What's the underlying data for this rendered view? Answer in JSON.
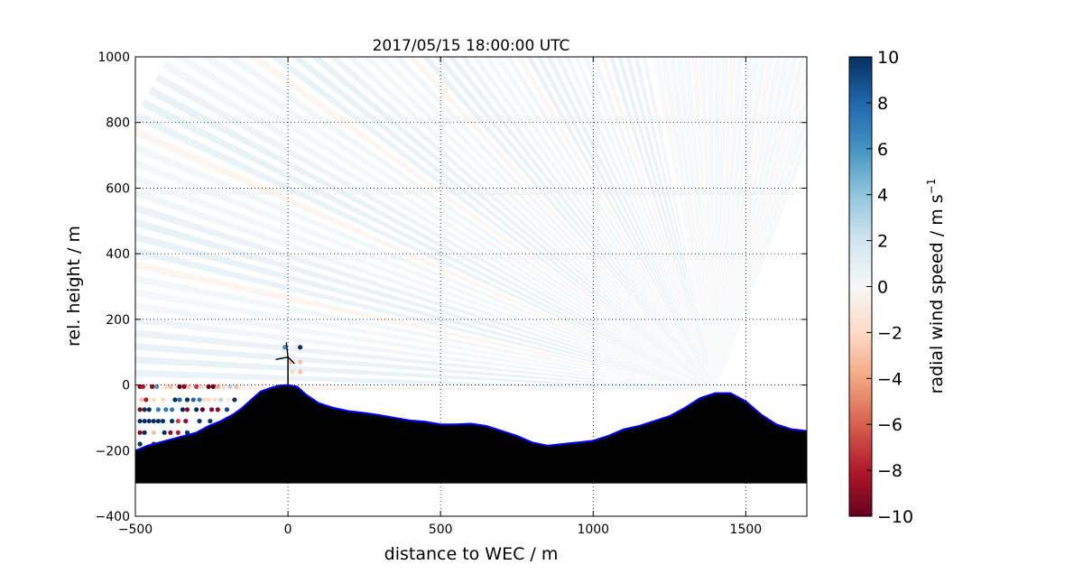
{
  "chart_data": {
    "type": "scatter",
    "title": "2017/05/15 18:00:00 UTC",
    "xlabel": "distance to WEC / m",
    "ylabel": "rel. height / m",
    "xlim": [
      -500,
      1700
    ],
    "ylim": [
      -400,
      1000
    ],
    "xticks": [
      -500,
      0,
      500,
      1000,
      1500
    ],
    "yticks": [
      -400,
      -200,
      0,
      200,
      400,
      600,
      800,
      1000
    ],
    "xtick_labels": [
      "−500",
      "0",
      "500",
      "1000",
      "1500"
    ],
    "ytick_labels": [
      "−400",
      "−200",
      "0",
      "200",
      "400",
      "600",
      "800",
      "1000"
    ],
    "grid": true,
    "scan": {
      "origin": [
        1400,
        -20
      ],
      "extent": "roughly −480 to 1620 m in distance, up to 1000 m in height",
      "dominant_radial_wind_speed": [
        0,
        2
      ]
    },
    "terrain": {
      "x": [
        -500,
        -460,
        -420,
        -380,
        -340,
        -300,
        -260,
        -220,
        -180,
        -150,
        -120,
        -90,
        -60,
        -30,
        0,
        30,
        60,
        100,
        150,
        200,
        250,
        300,
        350,
        400,
        450,
        500,
        550,
        600,
        650,
        700,
        750,
        800,
        850,
        900,
        950,
        1000,
        1050,
        1100,
        1150,
        1200,
        1250,
        1300,
        1350,
        1400,
        1450,
        1500,
        1550,
        1600,
        1650,
        1700
      ],
      "y": [
        -200,
        -185,
        -175,
        -165,
        -155,
        -145,
        -125,
        -110,
        -90,
        -70,
        -45,
        -20,
        -10,
        -2,
        0,
        -5,
        -30,
        -55,
        -70,
        -80,
        -85,
        -92,
        -100,
        -108,
        -112,
        -120,
        -120,
        -118,
        -125,
        -140,
        -155,
        -175,
        -185,
        -180,
        -175,
        -170,
        -155,
        -135,
        -125,
        -110,
        -95,
        -70,
        -40,
        -25,
        -25,
        -50,
        -90,
        -120,
        -135,
        -140
      ],
      "base": -300,
      "fill_color": "#000000",
      "edge_color": "#0000ff"
    },
    "wec": {
      "x": 0,
      "hub_height": 85
    },
    "colorbar": {
      "label": "radial wind speed / m s",
      "label_superscript": "−1",
      "min": -10,
      "max": 10,
      "colormap": "RdBu",
      "ticks": [
        -10,
        -8,
        -6,
        -4,
        -2,
        0,
        2,
        4,
        6,
        8,
        10
      ],
      "tick_labels": [
        "−10",
        "−8",
        "−6",
        "−4",
        "−2",
        "0",
        "2",
        "4",
        "6",
        "8",
        "10"
      ],
      "colors": [
        "#67001f",
        "#b2182b",
        "#d6604d",
        "#f4a582",
        "#fddbc7",
        "#f7f7f7",
        "#d1e5f0",
        "#92c5de",
        "#4393c3",
        "#2166ac",
        "#053061"
      ]
    },
    "near_ground_points": [
      {
        "x": -485,
        "y": -5,
        "v": -9
      },
      {
        "x": -475,
        "y": -5,
        "v": -8
      },
      {
        "x": -445,
        "y": -5,
        "v": -9
      },
      {
        "x": -430,
        "y": -5,
        "v": 6
      },
      {
        "x": -400,
        "y": -5,
        "v": -2
      },
      {
        "x": -385,
        "y": -5,
        "v": -3
      },
      {
        "x": -355,
        "y": -5,
        "v": -10
      },
      {
        "x": -340,
        "y": -5,
        "v": -9
      },
      {
        "x": -325,
        "y": -5,
        "v": -3
      },
      {
        "x": -300,
        "y": -5,
        "v": -7
      },
      {
        "x": -285,
        "y": -5,
        "v": -2
      },
      {
        "x": -260,
        "y": -5,
        "v": -10
      },
      {
        "x": -245,
        "y": -5,
        "v": -10
      },
      {
        "x": -230,
        "y": -5,
        "v": -4
      },
      {
        "x": -210,
        "y": -5,
        "v": -2
      },
      {
        "x": -190,
        "y": -5,
        "v": 3
      },
      {
        "x": -170,
        "y": -5,
        "v": -3
      },
      {
        "x": -480,
        "y": -45,
        "v": -3
      },
      {
        "x": -465,
        "y": -45,
        "v": -8
      },
      {
        "x": -440,
        "y": -45,
        "v": -2
      },
      {
        "x": -410,
        "y": -45,
        "v": -2
      },
      {
        "x": -370,
        "y": -45,
        "v": 10
      },
      {
        "x": -355,
        "y": -45,
        "v": 8
      },
      {
        "x": -330,
        "y": -45,
        "v": 10
      },
      {
        "x": -310,
        "y": -45,
        "v": 8
      },
      {
        "x": -290,
        "y": -45,
        "v": 7
      },
      {
        "x": -275,
        "y": -45,
        "v": -2
      },
      {
        "x": -260,
        "y": -45,
        "v": -2
      },
      {
        "x": -240,
        "y": -45,
        "v": -2
      },
      {
        "x": -220,
        "y": -45,
        "v": 3
      },
      {
        "x": -195,
        "y": -45,
        "v": -1
      },
      {
        "x": -175,
        "y": -45,
        "v": 10
      },
      {
        "x": -485,
        "y": -75,
        "v": -9
      },
      {
        "x": -470,
        "y": -75,
        "v": 10
      },
      {
        "x": -455,
        "y": -75,
        "v": 10
      },
      {
        "x": -425,
        "y": -75,
        "v": 7
      },
      {
        "x": -400,
        "y": -75,
        "v": 7
      },
      {
        "x": -380,
        "y": -75,
        "v": 7
      },
      {
        "x": -345,
        "y": -75,
        "v": 10
      },
      {
        "x": -330,
        "y": -75,
        "v": -9
      },
      {
        "x": -300,
        "y": -75,
        "v": 10
      },
      {
        "x": -280,
        "y": -75,
        "v": -10
      },
      {
        "x": -250,
        "y": -75,
        "v": -9
      },
      {
        "x": -230,
        "y": -75,
        "v": -9
      },
      {
        "x": -200,
        "y": -75,
        "v": 9
      },
      {
        "x": -485,
        "y": -110,
        "v": 10
      },
      {
        "x": -470,
        "y": -110,
        "v": 10
      },
      {
        "x": -455,
        "y": -110,
        "v": 10
      },
      {
        "x": -440,
        "y": -110,
        "v": 10
      },
      {
        "x": -425,
        "y": -110,
        "v": 10
      },
      {
        "x": -410,
        "y": -110,
        "v": 10
      },
      {
        "x": -380,
        "y": -110,
        "v": 10
      },
      {
        "x": -360,
        "y": -110,
        "v": -7
      },
      {
        "x": -335,
        "y": -110,
        "v": -9
      },
      {
        "x": -290,
        "y": -110,
        "v": 10
      },
      {
        "x": -255,
        "y": -110,
        "v": 10
      },
      {
        "x": -485,
        "y": -145,
        "v": -9
      },
      {
        "x": -470,
        "y": -145,
        "v": 10
      },
      {
        "x": -440,
        "y": -145,
        "v": -3
      },
      {
        "x": -405,
        "y": -145,
        "v": 10
      },
      {
        "x": -385,
        "y": -145,
        "v": -9
      },
      {
        "x": -360,
        "y": -145,
        "v": -8
      },
      {
        "x": -330,
        "y": -145,
        "v": 10
      },
      {
        "x": -485,
        "y": -180,
        "v": 10
      },
      {
        "x": -440,
        "y": -180,
        "v": -9
      },
      {
        "x": -410,
        "y": -180,
        "v": -9
      },
      {
        "x": -10,
        "y": 115,
        "v": 6
      },
      {
        "x": 25,
        "y": 115,
        "v": -1
      },
      {
        "x": 40,
        "y": 115,
        "v": 10
      },
      {
        "x": 10,
        "y": 70,
        "v": -3
      },
      {
        "x": 40,
        "y": 70,
        "v": -3
      },
      {
        "x": 40,
        "y": 40,
        "v": -3
      },
      {
        "x": 15,
        "y": 40,
        "v": -2
      }
    ]
  }
}
